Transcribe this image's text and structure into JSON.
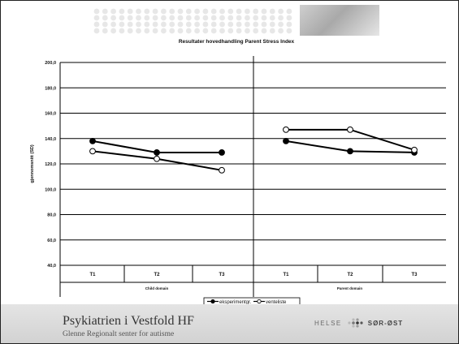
{
  "chart_data": {
    "type": "line",
    "title": "Resultater hovedhandling Parent Stress Index",
    "ylabel": "gjennomsnitt (SD)",
    "y_ticks": [
      "40,0",
      "60,0",
      "80,0",
      "100,0",
      "120,0",
      "140,0",
      "160,0",
      "180,0",
      "200,0"
    ],
    "ylim": [
      40,
      200
    ],
    "grid": true,
    "groups": [
      {
        "label": "Child domain",
        "categories": [
          "T1",
          "T2",
          "T3"
        ]
      },
      {
        "label": "Parent domain",
        "categories": [
          "T1",
          "T2",
          "T3"
        ]
      }
    ],
    "series": [
      {
        "name": "eksperimentgr.",
        "marker": "filled-circle",
        "color": "#000000",
        "values": [
          [
            138,
            129,
            129
          ],
          [
            138,
            130,
            129
          ]
        ]
      },
      {
        "name": "venteliste",
        "marker": "open-circle",
        "color": "#000000",
        "values": [
          [
            130,
            124,
            115
          ],
          [
            147,
            147,
            131
          ]
        ]
      }
    ],
    "legend_position": "bottom-center"
  },
  "footer": {
    "org_name": "Psykiatrien i Vestfold HF",
    "org_subtitle": "Glenne Regionalt senter for autisme",
    "region_logo_text_a": "HELSE",
    "region_logo_text_b": "SØR-ØST"
  },
  "colors": {
    "footer_bg": "#dcdcdc",
    "grid": "#000000",
    "dots": "#e7e7e7"
  }
}
